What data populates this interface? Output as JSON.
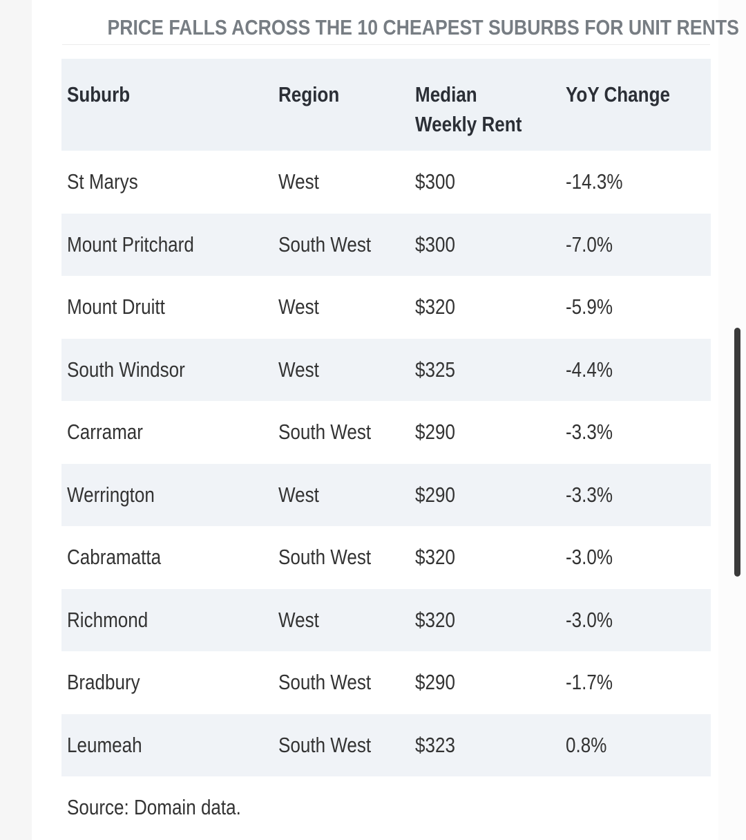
{
  "chart_data": {
    "type": "table",
    "title": "PRICE FALLS ACROSS THE 10 CHEAPEST SUBURBS FOR UNIT RENTS",
    "columns": [
      "Suburb",
      "Region",
      "Median Weekly Rent",
      "YoY Change"
    ],
    "rows": [
      [
        "St Marys",
        "West",
        "$300",
        "-14.3%"
      ],
      [
        "Mount Pritchard",
        "South West",
        "$300",
        "-7.0%"
      ],
      [
        "Mount Druitt",
        "West",
        "$320",
        "-5.9%"
      ],
      [
        "South Windsor",
        "West",
        "$325",
        "-4.4%"
      ],
      [
        "Carramar",
        "South West",
        "$290",
        "-3.3%"
      ],
      [
        "Werrington",
        "West",
        "$290",
        "-3.3%"
      ],
      [
        "Cabramatta",
        "South West",
        "$320",
        "-3.0%"
      ],
      [
        "Richmond",
        "West",
        "$320",
        "-3.0%"
      ],
      [
        "Bradbury",
        "South West",
        "$290",
        "-1.7%"
      ],
      [
        "Leumeah",
        "South West",
        "$323",
        "0.8%"
      ]
    ],
    "source": "Source: Domain data."
  },
  "colors": {
    "header_background": "#eef2f6",
    "stripe_background": "#f0f3f7",
    "title_color": "#777d83",
    "text_color": "#333333"
  }
}
